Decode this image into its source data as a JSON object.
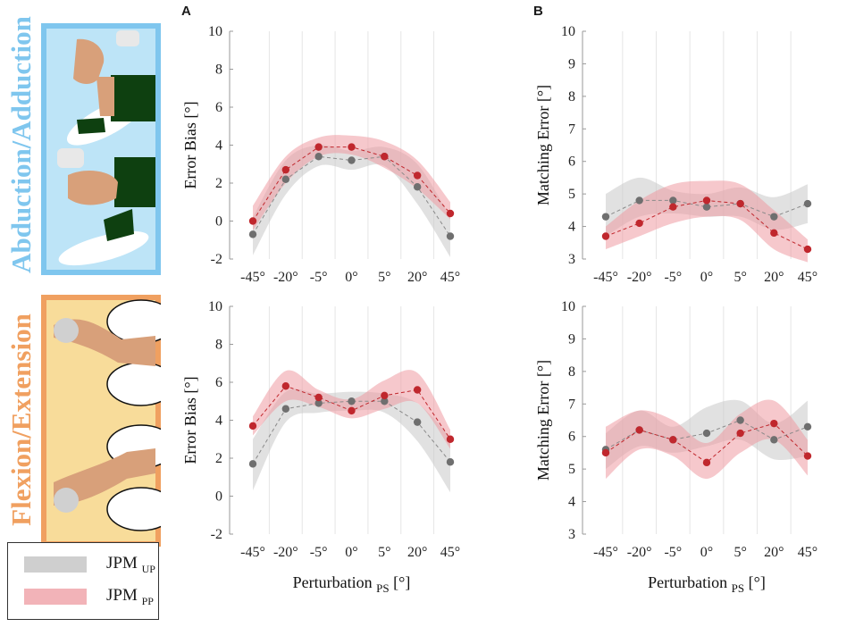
{
  "figure": {
    "rows": [
      {
        "label": "Abduction/Adduction",
        "color": "#7fc6ee"
      },
      {
        "label": "Flexion/Extension",
        "color": "#f0a060"
      }
    ],
    "panel_letters": [
      "A",
      "B"
    ],
    "legend": [
      {
        "main": "JPM",
        "sub": "UP",
        "color": "#cfcfcf"
      },
      {
        "main": "JPM",
        "sub": "PP",
        "color": "#f2b3b8"
      }
    ],
    "colors": {
      "up_dot": "#6f6f6f",
      "pp_dot": "#c0272d",
      "up_band": "#c8c8c8",
      "pp_band": "#ee9aa2"
    }
  },
  "chart_data": [
    {
      "type": "line",
      "id": "A-top",
      "title": "",
      "xlabel": "",
      "ylabel": "Error Bias [°]",
      "categories": [
        "-45°",
        "-20°",
        "-5°",
        "0°",
        "5°",
        "20°",
        "45°"
      ],
      "yticks": [
        "-2",
        "0",
        "2",
        "4",
        "6",
        "8",
        "10"
      ],
      "ylim": [
        -2,
        10
      ],
      "series": [
        {
          "name": "JPM UP",
          "values": [
            -0.7,
            2.2,
            3.4,
            3.2,
            3.4,
            1.8,
            -0.8
          ],
          "band_upper": [
            0.2,
            3.2,
            4.0,
            3.7,
            3.9,
            3.0,
            0.2
          ],
          "band_lower": [
            -1.8,
            1.4,
            2.9,
            2.7,
            2.9,
            0.9,
            -1.9
          ]
        },
        {
          "name": "JPM PP",
          "values": [
            0.0,
            2.7,
            3.9,
            3.9,
            3.4,
            2.4,
            0.4
          ],
          "band_upper": [
            0.8,
            3.4,
            4.4,
            4.5,
            4.2,
            3.2,
            1.0
          ],
          "band_lower": [
            -0.5,
            2.0,
            3.4,
            3.5,
            2.8,
            1.7,
            0.1
          ]
        }
      ]
    },
    {
      "type": "line",
      "id": "B-top",
      "title": "",
      "xlabel": "",
      "ylabel": "Matching Error [°]",
      "categories": [
        "-45°",
        "-20°",
        "-5°",
        "0°",
        "5°",
        "20°",
        "45°"
      ],
      "yticks": [
        "3",
        "4",
        "5",
        "6",
        "7",
        "8",
        "9",
        "10"
      ],
      "ylim": [
        3,
        10
      ],
      "series": [
        {
          "name": "JPM UP",
          "values": [
            4.3,
            4.8,
            4.8,
            4.6,
            4.7,
            4.3,
            4.7
          ],
          "band_upper": [
            5.0,
            5.5,
            5.1,
            5.0,
            5.2,
            4.9,
            5.3
          ],
          "band_lower": [
            3.7,
            4.3,
            4.4,
            4.3,
            4.3,
            3.9,
            4.1
          ]
        },
        {
          "name": "JPM PP",
          "values": [
            3.7,
            4.1,
            4.6,
            4.8,
            4.7,
            3.8,
            3.3
          ],
          "band_upper": [
            4.0,
            4.8,
            5.3,
            5.4,
            5.3,
            4.5,
            3.6
          ],
          "band_lower": [
            3.3,
            3.7,
            4.1,
            4.3,
            4.2,
            3.3,
            2.9
          ]
        }
      ]
    },
    {
      "type": "line",
      "id": "A-bottom",
      "title": "",
      "xlabel": "Perturbation",
      "xlabel_sub": "PS",
      "xlabel_unit": " [°]",
      "ylabel": "Error Bias [°]",
      "categories": [
        "-45°",
        "-20°",
        "-5°",
        "0°",
        "5°",
        "20°",
        "45°"
      ],
      "yticks": [
        "-2",
        "0",
        "2",
        "4",
        "6",
        "8",
        "10"
      ],
      "ylim": [
        -2,
        10
      ],
      "series": [
        {
          "name": "JPM UP",
          "values": [
            1.7,
            4.6,
            4.9,
            5.0,
            5.0,
            3.9,
            1.8
          ],
          "band_upper": [
            3.0,
            5.5,
            5.4,
            5.5,
            5.4,
            4.9,
            3.1
          ],
          "band_lower": [
            0.3,
            3.9,
            4.4,
            4.5,
            4.4,
            2.9,
            0.2
          ]
        },
        {
          "name": "JPM PP",
          "values": [
            3.7,
            5.8,
            5.2,
            4.5,
            5.3,
            5.6,
            3.0
          ],
          "band_upper": [
            4.2,
            6.6,
            5.6,
            5.1,
            6.1,
            6.5,
            3.5
          ],
          "band_lower": [
            3.2,
            5.0,
            4.7,
            4.1,
            4.6,
            4.9,
            2.5
          ]
        }
      ]
    },
    {
      "type": "line",
      "id": "B-bottom",
      "title": "",
      "xlabel": "Perturbation",
      "xlabel_sub": "PS",
      "xlabel_unit": " [°]",
      "ylabel": "Matching Error [°]",
      "categories": [
        "-45°",
        "-20°",
        "-5°",
        "0°",
        "5°",
        "20°",
        "45°"
      ],
      "yticks": [
        "3",
        "4",
        "5",
        "6",
        "7",
        "8",
        "9",
        "10"
      ],
      "ylim": [
        3,
        10
      ],
      "series": [
        {
          "name": "JPM UP",
          "values": [
            5.6,
            6.2,
            5.9,
            6.1,
            6.5,
            5.9,
            6.3
          ],
          "band_upper": [
            6.1,
            6.8,
            6.3,
            6.9,
            7.1,
            6.4,
            7.1
          ],
          "band_lower": [
            5.0,
            5.7,
            5.5,
            5.7,
            5.9,
            5.3,
            5.4
          ]
        },
        {
          "name": "JPM PP",
          "values": [
            5.5,
            6.2,
            5.9,
            5.2,
            6.1,
            6.4,
            5.4
          ],
          "band_upper": [
            6.3,
            6.8,
            6.5,
            5.8,
            6.7,
            7.1,
            5.9
          ],
          "band_lower": [
            4.7,
            5.6,
            5.4,
            4.7,
            5.5,
            5.9,
            4.8
          ]
        }
      ]
    }
  ]
}
